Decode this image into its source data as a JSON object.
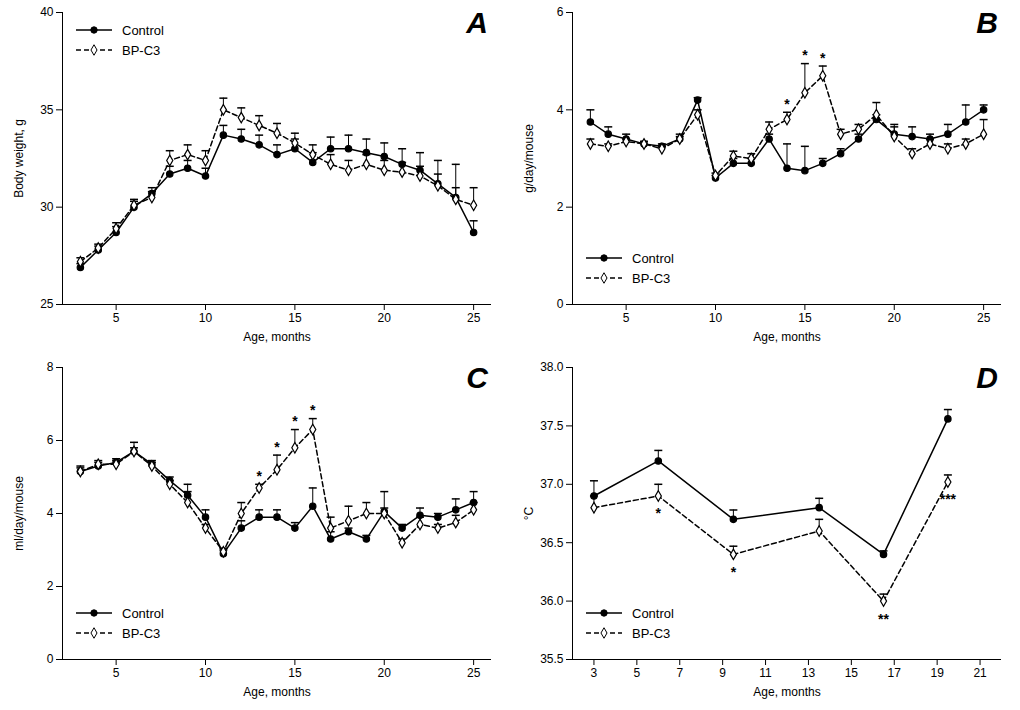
{
  "chart_data": [
    {
      "type": "line",
      "title": "A",
      "xlabel": "Age, months",
      "ylabel": "Body weight, g",
      "xlim": [
        2,
        26
      ],
      "xticks": [
        5,
        10,
        15,
        20,
        25
      ],
      "ylim": [
        25,
        40
      ],
      "yticks": [
        25,
        30,
        35,
        40
      ],
      "grid": false,
      "legend": "upper left",
      "x": [
        3,
        4,
        5,
        6,
        7,
        8,
        9,
        10,
        11,
        12,
        13,
        14,
        15,
        16,
        17,
        18,
        19,
        20,
        21,
        22,
        23,
        24,
        25
      ],
      "series": [
        {
          "name": "Control",
          "color": "#000000",
          "marker": "circle",
          "line_style": "solid",
          "values": [
            26.9,
            27.8,
            28.7,
            30.0,
            30.7,
            31.7,
            32.0,
            31.6,
            33.7,
            33.5,
            33.2,
            32.7,
            33.0,
            32.3,
            33.0,
            33.0,
            32.8,
            32.6,
            32.2,
            31.9,
            31.2,
            30.5,
            28.7
          ],
          "errors": [
            0.2,
            0.2,
            0.3,
            0.3,
            0.3,
            0.4,
            0.4,
            0.4,
            0.5,
            0.5,
            0.5,
            0.5,
            0.5,
            0.5,
            0.6,
            0.7,
            0.7,
            0.7,
            0.8,
            0.9,
            1.2,
            1.7,
            0.6
          ]
        },
        {
          "name": "BP-C3",
          "color": "#000000",
          "marker": "diamond",
          "line_style": "dashed",
          "values": [
            27.2,
            27.9,
            28.9,
            30.1,
            30.5,
            32.4,
            32.7,
            32.4,
            35.0,
            34.6,
            34.2,
            33.8,
            33.3,
            32.7,
            32.2,
            31.9,
            32.2,
            31.9,
            31.8,
            31.6,
            31.1,
            30.4,
            30.1
          ],
          "errors": [
            0.2,
            0.2,
            0.3,
            0.3,
            0.3,
            0.5,
            0.5,
            0.5,
            0.6,
            0.5,
            0.5,
            0.5,
            0.5,
            0.5,
            0.5,
            0.5,
            0.5,
            0.5,
            0.5,
            0.5,
            0.6,
            0.6,
            0.9
          ]
        }
      ],
      "annotations": []
    },
    {
      "type": "line",
      "title": "B",
      "xlabel": "Age, months",
      "ylabel": "g/day/mouse",
      "xlim": [
        2,
        26
      ],
      "xticks": [
        5,
        10,
        15,
        20,
        25
      ],
      "ylim": [
        0,
        6
      ],
      "yticks": [
        0,
        2,
        4,
        6
      ],
      "grid": false,
      "legend": "lower left",
      "x": [
        3,
        4,
        5,
        6,
        7,
        8,
        9,
        10,
        11,
        12,
        13,
        14,
        15,
        16,
        17,
        18,
        19,
        20,
        21,
        22,
        23,
        24,
        25
      ],
      "series": [
        {
          "name": "Control",
          "color": "#000000",
          "marker": "circle",
          "line_style": "solid",
          "values": [
            3.75,
            3.5,
            3.4,
            3.3,
            3.25,
            3.4,
            4.2,
            2.6,
            2.9,
            2.9,
            3.4,
            2.8,
            2.75,
            2.9,
            3.1,
            3.4,
            3.8,
            3.5,
            3.45,
            3.4,
            3.5,
            3.75,
            4.0
          ],
          "errors": [
            0.25,
            0.15,
            0.1,
            0.05,
            0.05,
            0.1,
            0.05,
            0.05,
            0.1,
            0.1,
            0.1,
            0.5,
            0.5,
            0.1,
            0.1,
            0.1,
            0.1,
            0.2,
            0.2,
            0.1,
            0.2,
            0.35,
            0.1
          ]
        },
        {
          "name": "BP-C3",
          "color": "#000000",
          "marker": "diamond",
          "line_style": "dashed",
          "values": [
            3.3,
            3.25,
            3.35,
            3.3,
            3.2,
            3.4,
            3.9,
            2.65,
            3.05,
            3.0,
            3.6,
            3.8,
            4.35,
            4.7,
            3.5,
            3.6,
            3.9,
            3.45,
            3.1,
            3.3,
            3.2,
            3.3,
            3.5
          ],
          "errors": [
            0.1,
            0.05,
            0.05,
            0.05,
            0.05,
            0.05,
            0.1,
            0.05,
            0.1,
            0.1,
            0.15,
            0.15,
            0.6,
            0.2,
            0.1,
            0.1,
            0.25,
            0.2,
            0.1,
            0.1,
            0.1,
            0.1,
            0.3
          ]
        }
      ],
      "annotations": [
        {
          "x": 14,
          "text": "*"
        },
        {
          "x": 15,
          "text": "*"
        },
        {
          "x": 16,
          "text": "*"
        }
      ]
    },
    {
      "type": "line",
      "title": "C",
      "xlabel": "Age, months",
      "ylabel": "ml/day/mouse",
      "xlim": [
        2,
        26
      ],
      "xticks": [
        5,
        10,
        15,
        20,
        25
      ],
      "ylim": [
        0,
        8
      ],
      "yticks": [
        0,
        2,
        4,
        6,
        8
      ],
      "grid": false,
      "legend": "lower left",
      "x": [
        3,
        4,
        5,
        6,
        7,
        8,
        9,
        10,
        11,
        12,
        13,
        14,
        15,
        16,
        17,
        18,
        19,
        20,
        21,
        22,
        23,
        24,
        25
      ],
      "series": [
        {
          "name": "Control",
          "color": "#000000",
          "marker": "circle",
          "line_style": "solid",
          "values": [
            5.15,
            5.3,
            5.4,
            5.7,
            5.35,
            4.9,
            4.5,
            3.9,
            2.9,
            3.6,
            3.9,
            3.9,
            3.6,
            4.2,
            3.3,
            3.5,
            3.3,
            4.05,
            3.6,
            3.95,
            3.9,
            4.1,
            4.3
          ],
          "errors": [
            0.15,
            0.1,
            0.1,
            0.25,
            0.1,
            0.1,
            0.3,
            0.2,
            0.1,
            0.2,
            0.2,
            0.2,
            0.15,
            0.5,
            0.2,
            0.1,
            0.1,
            0.1,
            0.1,
            0.2,
            0.1,
            0.3,
            0.3
          ]
        },
        {
          "name": "BP-C3",
          "color": "#000000",
          "marker": "diamond",
          "line_style": "dashed",
          "values": [
            5.15,
            5.35,
            5.35,
            5.7,
            5.3,
            4.8,
            4.3,
            3.6,
            2.95,
            4.0,
            4.7,
            5.2,
            5.8,
            6.3,
            3.6,
            3.8,
            4.0,
            4.0,
            3.2,
            3.7,
            3.6,
            3.75,
            4.1
          ],
          "errors": [
            0.1,
            0.1,
            0.1,
            0.1,
            0.1,
            0.1,
            0.3,
            0.1,
            0.1,
            0.3,
            0.1,
            0.4,
            0.5,
            0.3,
            0.3,
            0.4,
            0.3,
            0.6,
            0.1,
            0.2,
            0.1,
            0.2,
            0.2
          ]
        }
      ],
      "annotations": [
        {
          "x": 13,
          "text": "*"
        },
        {
          "x": 14,
          "text": "*"
        },
        {
          "x": 15,
          "text": "*"
        },
        {
          "x": 16,
          "text": "*"
        }
      ]
    },
    {
      "type": "line",
      "title": "D",
      "xlabel": "Age, months",
      "ylabel": "°C",
      "xlim": [
        2,
        22
      ],
      "xticks": [
        3,
        5,
        7,
        9,
        11,
        13,
        15,
        17,
        19,
        21
      ],
      "ylim": [
        35.5,
        38.0
      ],
      "yticks": [
        35.5,
        {
          "value": 36.0,
          "label": "36.0"
        },
        36.5,
        {
          "value": 37.0,
          "label": "37.0"
        },
        37.5,
        {
          "value": 38.0,
          "label": "38.0"
        }
      ],
      "grid": false,
      "legend": "lower left",
      "x": [
        3,
        6,
        9.5,
        13.5,
        16.5,
        19.5
      ],
      "series": [
        {
          "name": "Control",
          "color": "#000000",
          "marker": "circle",
          "line_style": "solid",
          "values": [
            36.9,
            37.2,
            36.7,
            36.8,
            36.4,
            37.56
          ],
          "errors": [
            0.13,
            0.09,
            0.08,
            0.08,
            0.03,
            0.08
          ]
        },
        {
          "name": "BP-C3",
          "color": "#000000",
          "marker": "diamond",
          "line_style": "dashed",
          "values": [
            36.8,
            36.9,
            36.4,
            36.6,
            36.0,
            37.02
          ],
          "errors": [
            0.1,
            0.1,
            0.07,
            0.1,
            0.06,
            0.06
          ]
        }
      ],
      "annotations": [
        {
          "x": 6,
          "text": "*"
        },
        {
          "x": 9.5,
          "text": "*"
        },
        {
          "x": 16.5,
          "text": "**"
        },
        {
          "x": 19.5,
          "text": "***"
        }
      ]
    }
  ]
}
